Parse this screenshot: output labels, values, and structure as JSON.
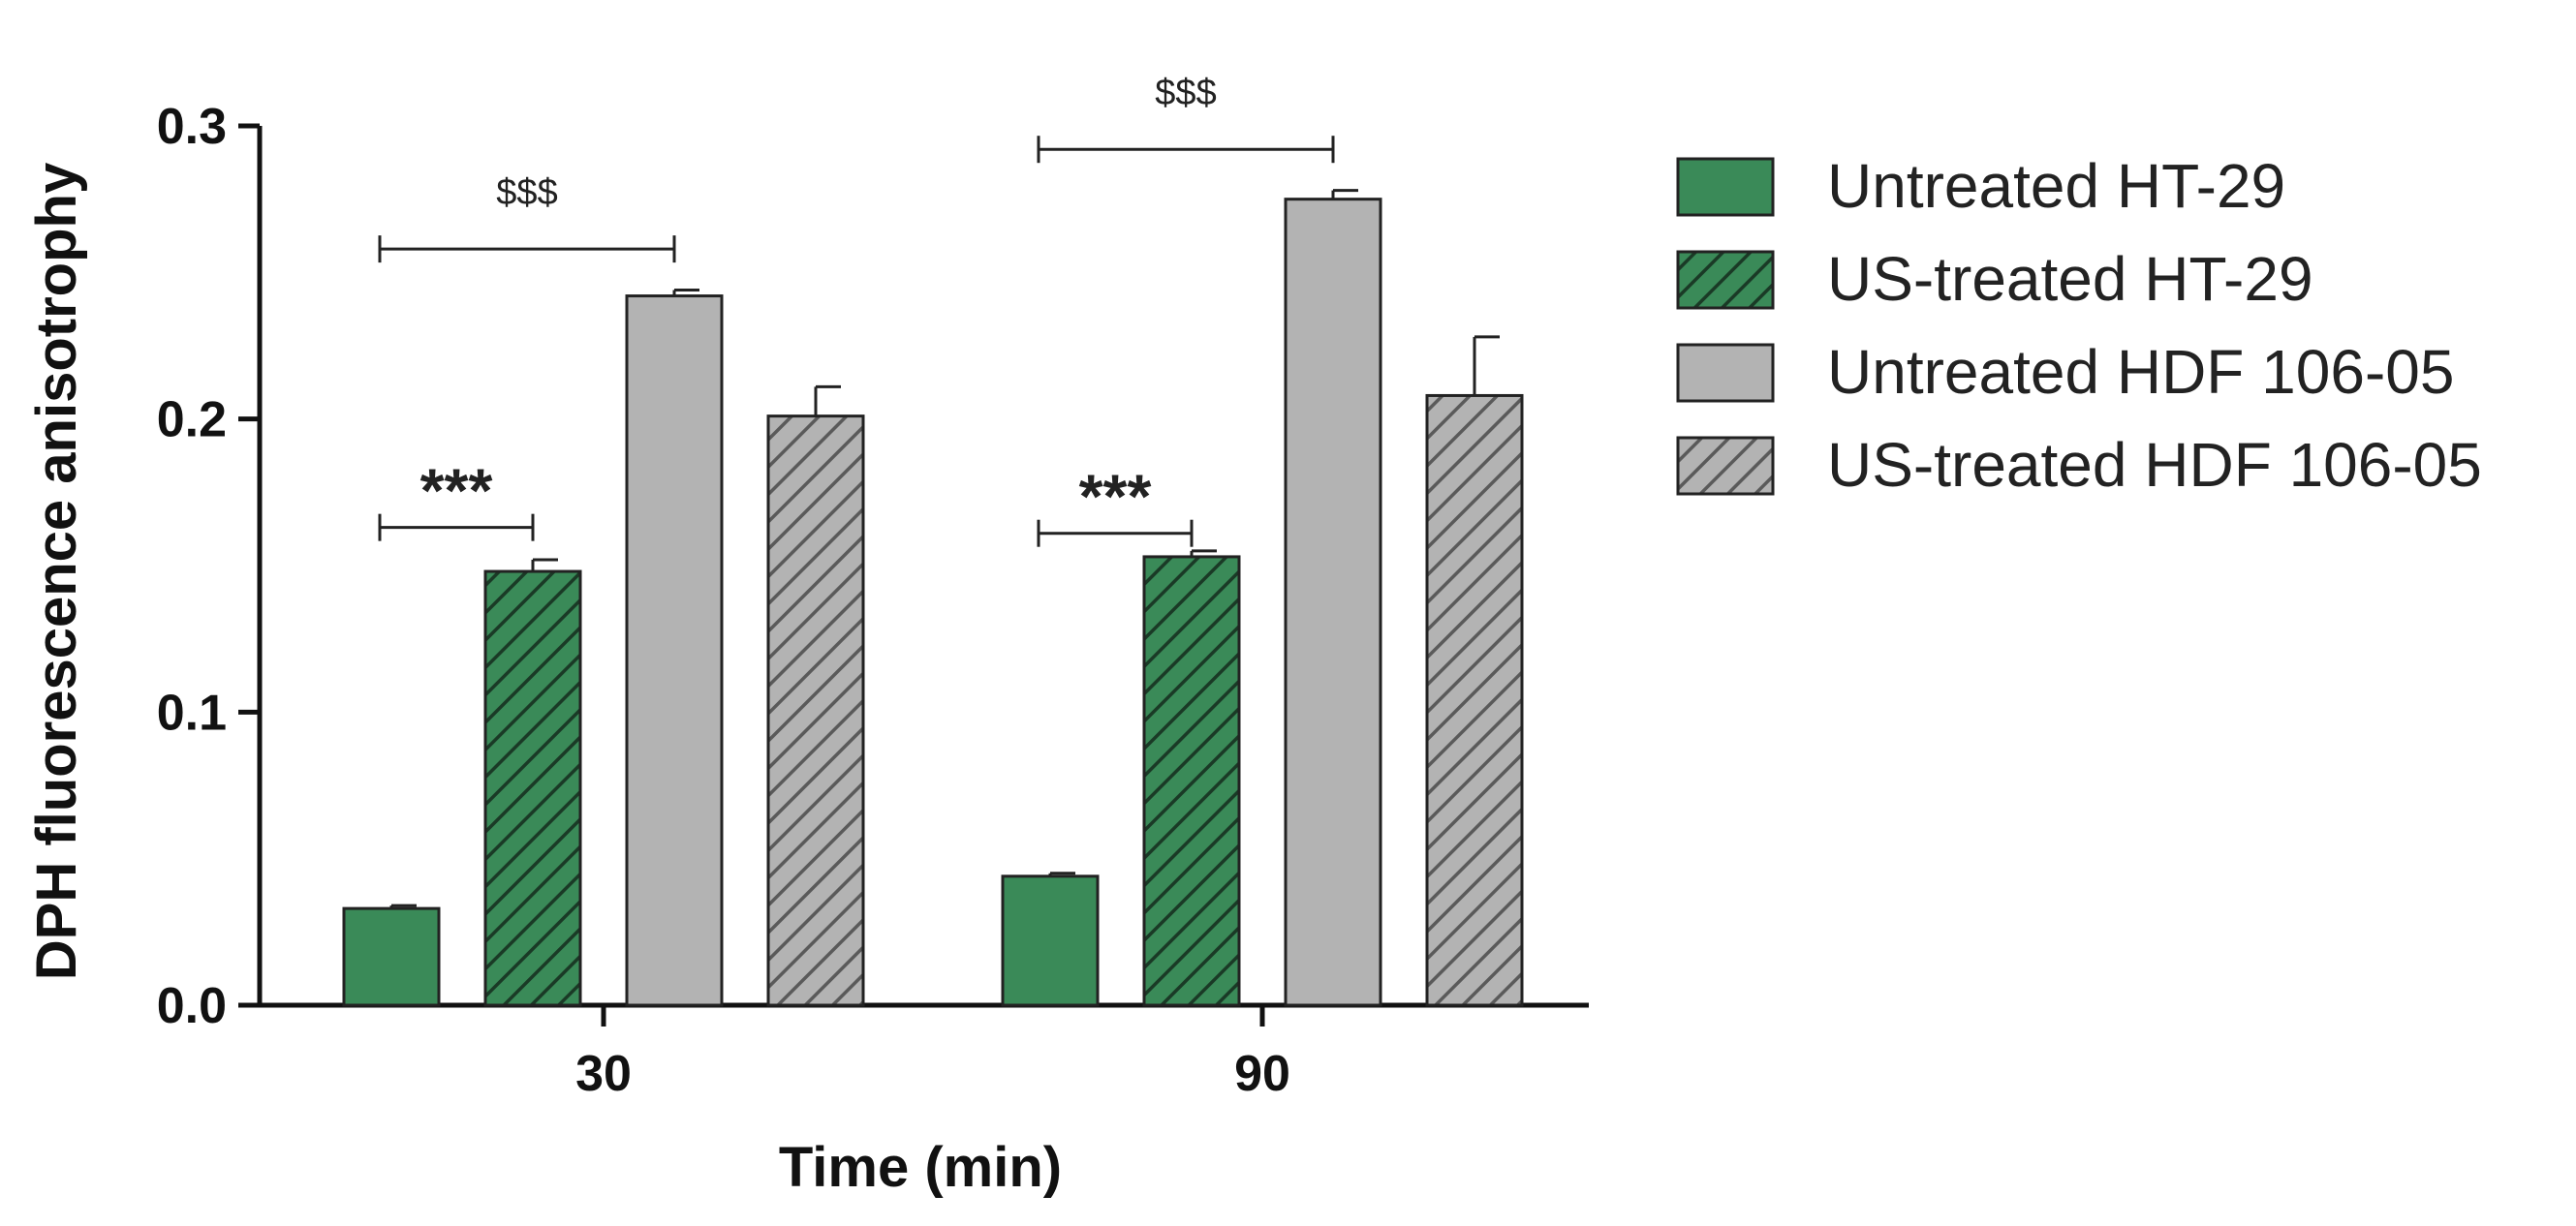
{
  "chart_data": {
    "type": "bar",
    "title": "",
    "xlabel": "Time (min)",
    "ylabel": "DPH fluorescence anisotrophy",
    "categories": [
      "30",
      "90"
    ],
    "ylim": [
      0,
      0.3
    ],
    "yticks": [
      "0.0",
      "0.1",
      "0.2",
      "0.3"
    ],
    "legend_position": "right",
    "series": [
      {
        "name": "Untreated HT-29",
        "values": [
          0.033,
          0.044
        ],
        "errors": [
          0.001,
          0.001
        ],
        "color": "#3a8a58",
        "pattern": "solid"
      },
      {
        "name": "US-treated HT-29",
        "values": [
          0.148,
          0.153
        ],
        "errors": [
          0.004,
          0.002
        ],
        "color": "#3a8a58",
        "pattern": "hatched"
      },
      {
        "name": "Untreated HDF 106-05",
        "values": [
          0.242,
          0.275
        ],
        "errors": [
          0.002,
          0.003
        ],
        "color": "#b3b3b3",
        "pattern": "solid"
      },
      {
        "name": "US-treated HDF 106-05",
        "values": [
          0.201,
          0.208
        ],
        "errors": [
          0.01,
          0.02
        ],
        "color": "#b3b3b3",
        "pattern": "hatched"
      }
    ],
    "annotations": [
      {
        "label": "***",
        "category": "30",
        "from_series": 0,
        "to_series": 1,
        "y": 0.163
      },
      {
        "label": "***",
        "category": "90",
        "from_series": 0,
        "to_series": 1,
        "y": 0.161
      },
      {
        "label": "$$$",
        "category": "30",
        "from_series": 0,
        "to_series": 2,
        "y": 0.258
      },
      {
        "label": "$$$",
        "category": "90",
        "from_series": 0,
        "to_series": 2,
        "y": 0.292
      }
    ]
  }
}
